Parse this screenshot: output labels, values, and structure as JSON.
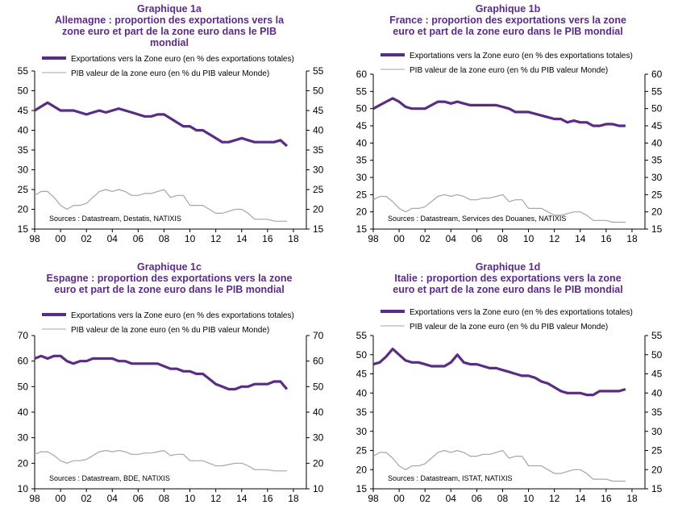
{
  "colors": {
    "exports": "#5b2c83",
    "gdp": "#a6a6a6",
    "title": "#5b2c83",
    "axis": "#000000"
  },
  "legend": {
    "exports": "Exportations vers la Zone euro (en % des exportations totales)",
    "gdp": "PIB valeur de la zone euro (en % du PIB valeur Monde)"
  },
  "chart_data": [
    {
      "type": "line",
      "title": "Graphique 1a",
      "subtitle_lines": [
        "Allemagne : proportion des exportations vers la",
        "zone euro et part de la zone euro dans le PIB",
        "mondial"
      ],
      "source": "Sources : Datastream, Destatis, NATIXIS",
      "ylim": [
        15,
        55
      ],
      "yticks": [
        15,
        20,
        25,
        30,
        35,
        40,
        45,
        50,
        55
      ],
      "xlim": [
        1998,
        2019
      ],
      "xtick_labels": [
        "98",
        "00",
        "02",
        "04",
        "06",
        "08",
        "10",
        "12",
        "14",
        "16",
        "18"
      ],
      "series": [
        {
          "name": "Exportations vers la Zone euro (en % des exportations totales)",
          "x": [
            1998.0,
            1998.5,
            1999.0,
            1999.5,
            2000.0,
            2000.5,
            2001.0,
            2001.5,
            2002.0,
            2002.5,
            2003.0,
            2003.5,
            2004.0,
            2004.5,
            2005.0,
            2005.5,
            2006.0,
            2006.5,
            2007.0,
            2007.5,
            2008.0,
            2008.5,
            2009.0,
            2009.5,
            2010.0,
            2010.5,
            2011.0,
            2011.5,
            2012.0,
            2012.5,
            2013.0,
            2013.5,
            2014.0,
            2014.5,
            2015.0,
            2015.5,
            2016.0,
            2016.5,
            2017.0,
            2017.5
          ],
          "y": [
            45,
            46,
            47,
            46,
            45,
            45,
            45,
            44.5,
            44,
            44.5,
            45,
            44.5,
            45,
            45.5,
            45,
            44.5,
            44,
            43.5,
            43.5,
            44,
            44,
            43,
            42,
            41,
            41,
            40,
            40,
            39,
            38,
            37,
            37,
            37.5,
            38,
            37.5,
            37,
            37,
            37,
            37,
            37.5,
            36
          ]
        },
        {
          "name": "PIB valeur de la zone euro (en % du PIB valeur Monde)",
          "x": [
            1998.0,
            1998.5,
            1999.0,
            1999.5,
            2000.0,
            2000.5,
            2001.0,
            2001.5,
            2002.0,
            2002.5,
            2003.0,
            2003.5,
            2004.0,
            2004.5,
            2005.0,
            2005.5,
            2006.0,
            2006.5,
            2007.0,
            2007.5,
            2008.0,
            2008.5,
            2009.0,
            2009.5,
            2010.0,
            2010.5,
            2011.0,
            2011.5,
            2012.0,
            2012.5,
            2013.0,
            2013.5,
            2014.0,
            2014.5,
            2015.0,
            2015.5,
            2016.0,
            2016.5,
            2017.0,
            2017.5
          ],
          "y": [
            23.5,
            24.5,
            24.5,
            23,
            21,
            20,
            21,
            21,
            21.5,
            23,
            24.5,
            25,
            24.5,
            25,
            24.5,
            23.5,
            23.5,
            24,
            24,
            24.5,
            25,
            23,
            23.5,
            23.5,
            21,
            21,
            21,
            20,
            19,
            19,
            19.5,
            20,
            20,
            19,
            17.5,
            17.5,
            17.5,
            17,
            17,
            17
          ]
        }
      ]
    },
    {
      "type": "line",
      "title": "Graphique 1b",
      "subtitle_lines": [
        "France : proportion des exportations vers la zone",
        "euro et part de la zone euro dans le PIB mondial"
      ],
      "source": "Sources : Datastream, Services des Douanes, NATIXIS",
      "ylim": [
        15,
        60
      ],
      "yticks": [
        15,
        20,
        25,
        30,
        35,
        40,
        45,
        50,
        55,
        60
      ],
      "xlim": [
        1998,
        2019
      ],
      "xtick_labels": [
        "98",
        "00",
        "02",
        "04",
        "06",
        "08",
        "10",
        "12",
        "14",
        "16",
        "18"
      ],
      "series": [
        {
          "name": "Exportations vers la Zone euro (en % des exportations totales)",
          "x": [
            1998.0,
            1998.5,
            1999.0,
            1999.5,
            2000.0,
            2000.5,
            2001.0,
            2001.5,
            2002.0,
            2002.5,
            2003.0,
            2003.5,
            2004.0,
            2004.5,
            2005.0,
            2005.5,
            2006.0,
            2006.5,
            2007.0,
            2007.5,
            2008.0,
            2008.5,
            2009.0,
            2009.5,
            2010.0,
            2010.5,
            2011.0,
            2011.5,
            2012.0,
            2012.5,
            2013.0,
            2013.5,
            2014.0,
            2014.5,
            2015.0,
            2015.5,
            2016.0,
            2016.5,
            2017.0,
            2017.5
          ],
          "y": [
            50,
            51,
            52,
            53,
            52,
            50.5,
            50,
            50,
            50,
            51,
            52,
            52,
            51.5,
            52,
            51.5,
            51,
            51,
            51,
            51,
            51,
            50.5,
            50,
            49,
            49,
            49,
            48.5,
            48,
            47.5,
            47,
            47,
            46,
            46.5,
            46,
            46,
            45,
            45,
            45.5,
            45.5,
            45,
            45
          ]
        },
        {
          "name": "PIB valeur de la zone euro (en % du PIB valeur Monde)",
          "x": [
            1998.0,
            1998.5,
            1999.0,
            1999.5,
            2000.0,
            2000.5,
            2001.0,
            2001.5,
            2002.0,
            2002.5,
            2003.0,
            2003.5,
            2004.0,
            2004.5,
            2005.0,
            2005.5,
            2006.0,
            2006.5,
            2007.0,
            2007.5,
            2008.0,
            2008.5,
            2009.0,
            2009.5,
            2010.0,
            2010.5,
            2011.0,
            2011.5,
            2012.0,
            2012.5,
            2013.0,
            2013.5,
            2014.0,
            2014.5,
            2015.0,
            2015.5,
            2016.0,
            2016.5,
            2017.0,
            2017.5
          ],
          "y": [
            23.5,
            24.5,
            24.5,
            23,
            21,
            20,
            21,
            21,
            21.5,
            23,
            24.5,
            25,
            24.5,
            25,
            24.5,
            23.5,
            23.5,
            24,
            24,
            24.5,
            25,
            23,
            23.5,
            23.5,
            21,
            21,
            21,
            20,
            19,
            19,
            19.5,
            20,
            20,
            19,
            17.5,
            17.5,
            17.5,
            17,
            17,
            17
          ]
        }
      ]
    },
    {
      "type": "line",
      "title": "Graphique 1c",
      "subtitle_lines": [
        "Espagne : proportion des exportations vers la zone",
        "euro et part de la zone euro dans le PIB mondial"
      ],
      "source": "Sources : Datastream, BDE, NATIXIS",
      "ylim": [
        10,
        70
      ],
      "yticks": [
        10,
        20,
        30,
        40,
        50,
        60,
        70
      ],
      "xlim": [
        1998,
        2019
      ],
      "xtick_labels": [
        "98",
        "00",
        "02",
        "04",
        "06",
        "08",
        "10",
        "12",
        "14",
        "16",
        "18"
      ],
      "series": [
        {
          "name": "Exportations vers la Zone euro (en % des exportations totales)",
          "x": [
            1998.0,
            1998.5,
            1999.0,
            1999.5,
            2000.0,
            2000.5,
            2001.0,
            2001.5,
            2002.0,
            2002.5,
            2003.0,
            2003.5,
            2004.0,
            2004.5,
            2005.0,
            2005.5,
            2006.0,
            2006.5,
            2007.0,
            2007.5,
            2008.0,
            2008.5,
            2009.0,
            2009.5,
            2010.0,
            2010.5,
            2011.0,
            2011.5,
            2012.0,
            2012.5,
            2013.0,
            2013.5,
            2014.0,
            2014.5,
            2015.0,
            2015.5,
            2016.0,
            2016.5,
            2017.0,
            2017.5
          ],
          "y": [
            61,
            62,
            61,
            62,
            62,
            60,
            59,
            60,
            60,
            61,
            61,
            61,
            61,
            60,
            60,
            59,
            59,
            59,
            59,
            59,
            58,
            57,
            57,
            56,
            56,
            55,
            55,
            53,
            51,
            50,
            49,
            49,
            50,
            50,
            51,
            51,
            51,
            52,
            52,
            49
          ]
        },
        {
          "name": "PIB valeur de la zone euro (en % du PIB valeur Monde)",
          "x": [
            1998.0,
            1998.5,
            1999.0,
            1999.5,
            2000.0,
            2000.5,
            2001.0,
            2001.5,
            2002.0,
            2002.5,
            2003.0,
            2003.5,
            2004.0,
            2004.5,
            2005.0,
            2005.5,
            2006.0,
            2006.5,
            2007.0,
            2007.5,
            2008.0,
            2008.5,
            2009.0,
            2009.5,
            2010.0,
            2010.5,
            2011.0,
            2011.5,
            2012.0,
            2012.5,
            2013.0,
            2013.5,
            2014.0,
            2014.5,
            2015.0,
            2015.5,
            2016.0,
            2016.5,
            2017.0,
            2017.5
          ],
          "y": [
            23.5,
            24.5,
            24.5,
            23,
            21,
            20,
            21,
            21,
            21.5,
            23,
            24.5,
            25,
            24.5,
            25,
            24.5,
            23.5,
            23.5,
            24,
            24,
            24.5,
            25,
            23,
            23.5,
            23.5,
            21,
            21,
            21,
            20,
            19,
            19,
            19.5,
            20,
            20,
            19,
            17.5,
            17.5,
            17.5,
            17,
            17,
            17
          ]
        }
      ]
    },
    {
      "type": "line",
      "title": "Graphique 1d",
      "subtitle_lines": [
        "Italie : proportion des exportations vers la zone",
        "euro et part de la zone euro dans le PIB mondial"
      ],
      "source": "Sources : Datastream, ISTAT, NATIXIS",
      "ylim": [
        15,
        55
      ],
      "yticks": [
        15,
        20,
        25,
        30,
        35,
        40,
        45,
        50,
        55
      ],
      "xlim": [
        1998,
        2019
      ],
      "xtick_labels": [
        "98",
        "00",
        "02",
        "04",
        "06",
        "08",
        "10",
        "12",
        "14",
        "16",
        "18"
      ],
      "series": [
        {
          "name": "Exportations vers la Zone euro (en % des exportations totales)",
          "x": [
            1998.0,
            1998.5,
            1999.0,
            1999.5,
            2000.0,
            2000.5,
            2001.0,
            2001.5,
            2002.0,
            2002.5,
            2003.0,
            2003.5,
            2004.0,
            2004.5,
            2005.0,
            2005.5,
            2006.0,
            2006.5,
            2007.0,
            2007.5,
            2008.0,
            2008.5,
            2009.0,
            2009.5,
            2010.0,
            2010.5,
            2011.0,
            2011.5,
            2012.0,
            2012.5,
            2013.0,
            2013.5,
            2014.0,
            2014.5,
            2015.0,
            2015.5,
            2016.0,
            2016.5,
            2017.0,
            2017.5
          ],
          "y": [
            47.5,
            48,
            49.5,
            51.5,
            50,
            48.5,
            48,
            48,
            47.5,
            47,
            47,
            47,
            48,
            50,
            48,
            47.5,
            47.5,
            47,
            46.5,
            46.5,
            46,
            45.5,
            45,
            44.5,
            44.5,
            44,
            43,
            42.5,
            41.5,
            40.5,
            40,
            40,
            40,
            39.5,
            39.5,
            40.5,
            40.5,
            40.5,
            40.5,
            41
          ]
        },
        {
          "name": "PIB valeur de la zone euro (en % du PIB valeur Monde)",
          "x": [
            1998.0,
            1998.5,
            1999.0,
            1999.5,
            2000.0,
            2000.5,
            2001.0,
            2001.5,
            2002.0,
            2002.5,
            2003.0,
            2003.5,
            2004.0,
            2004.5,
            2005.0,
            2005.5,
            2006.0,
            2006.5,
            2007.0,
            2007.5,
            2008.0,
            2008.5,
            2009.0,
            2009.5,
            2010.0,
            2010.5,
            2011.0,
            2011.5,
            2012.0,
            2012.5,
            2013.0,
            2013.5,
            2014.0,
            2014.5,
            2015.0,
            2015.5,
            2016.0,
            2016.5,
            2017.0,
            2017.5
          ],
          "y": [
            23.5,
            24.5,
            24.5,
            23,
            21,
            20,
            21,
            21,
            21.5,
            23,
            24.5,
            25,
            24.5,
            25,
            24.5,
            23.5,
            23.5,
            24,
            24,
            24.5,
            25,
            23,
            23.5,
            23.5,
            21,
            21,
            21,
            20,
            19,
            19,
            19.5,
            20,
            20,
            19,
            17.5,
            17.5,
            17.5,
            17,
            17,
            17
          ]
        }
      ]
    }
  ]
}
